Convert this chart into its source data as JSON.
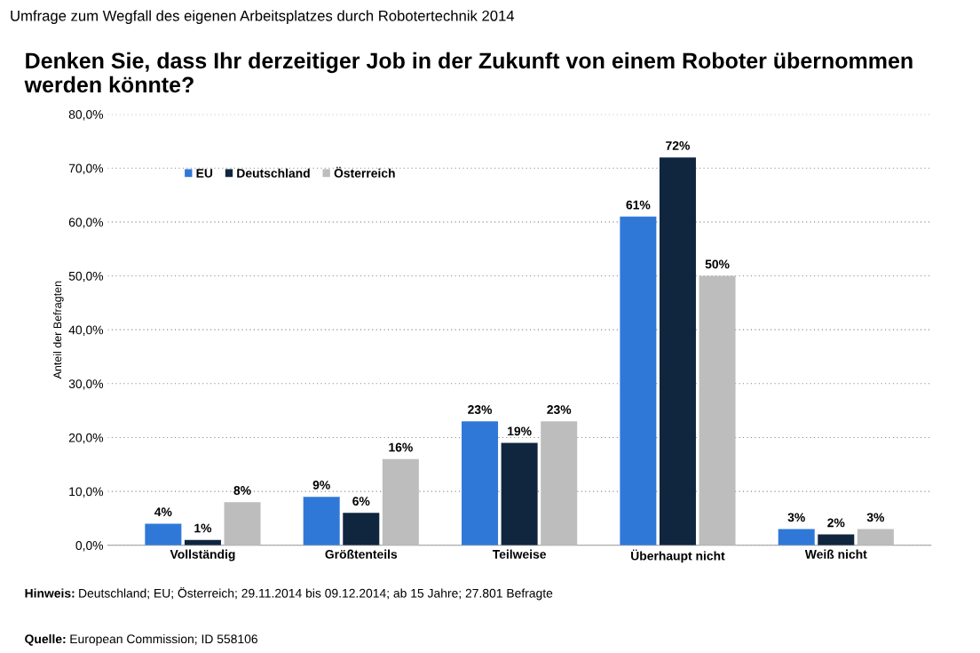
{
  "chart_data": {
    "type": "bar",
    "subtitle": "Umfrage zum Wegfall des eigenen Arbeitsplatzes durch Robotertechnik 2014",
    "title": "Denken Sie, dass Ihr derzeitiger Job in der Zukunft von einem Roboter übernommen werden könnte?",
    "ylabel": "Anteil der Befragten",
    "categories": [
      "Vollständig",
      "Größtenteils",
      "Teilweise",
      "Überhaupt nicht",
      "Weiß nicht"
    ],
    "series": [
      {
        "name": "EU",
        "color": "#2f78d8",
        "values": [
          4,
          9,
          23,
          61,
          3
        ],
        "value_labels": [
          "4%",
          "9%",
          "23%",
          "61%",
          "3%"
        ]
      },
      {
        "name": "Deutschland",
        "color": "#10263f",
        "values": [
          1,
          6,
          19,
          72,
          2
        ],
        "value_labels": [
          "1%",
          "6%",
          "19%",
          "72%",
          "2%"
        ]
      },
      {
        "name": "Österreich",
        "color": "#bdbdbd",
        "values": [
          8,
          16,
          23,
          50,
          3
        ],
        "value_labels": [
          "8%",
          "16%",
          "23%",
          "50%",
          "3%"
        ]
      }
    ],
    "ylim": [
      0,
      80
    ],
    "yticks": [
      {
        "value": 0,
        "label": "0,0%"
      },
      {
        "value": 10,
        "label": "10,0%"
      },
      {
        "value": 20,
        "label": "20,0%"
      },
      {
        "value": 30,
        "label": "30,0%"
      },
      {
        "value": 40,
        "label": "40,0%"
      },
      {
        "value": 50,
        "label": "50,0%"
      },
      {
        "value": 60,
        "label": "60,0%"
      },
      {
        "value": 70,
        "label": "70,0%"
      },
      {
        "value": 80,
        "label": "80,0%"
      }
    ],
    "grid": "y",
    "legend": "top left",
    "annotations": [
      "Hinweis: Deutschland; EU; Österreich; 29.11.2014 bis 09.12.2014; ab 15 Jahre; 27.801 Befragte",
      "Quelle: European Commission; ID 558106"
    ]
  }
}
